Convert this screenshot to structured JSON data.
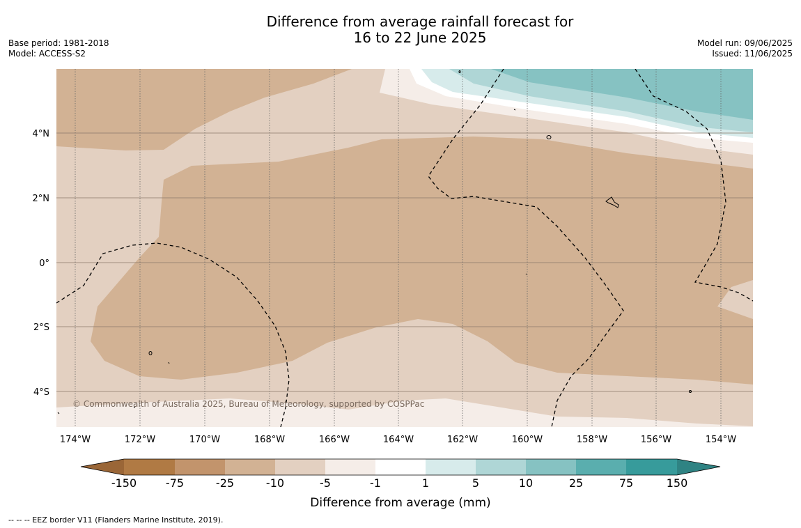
{
  "title": {
    "line1": "Difference from average rainfall forecast for",
    "line2": "16 to 22 June 2025"
  },
  "meta_left": {
    "base_period": "Base period: 1981-2018",
    "model": "Model: ACCESS-S2"
  },
  "meta_right": {
    "model_run": "Model run: 09/06/2025",
    "issued": "Issued: 11/06/2025"
  },
  "map": {
    "x_ticks": [
      "174°W",
      "172°W",
      "170°W",
      "168°W",
      "166°W",
      "164°W",
      "162°W",
      "160°W",
      "158°W",
      "156°W",
      "154°W"
    ],
    "y_ticks": [
      "4°N",
      "2°N",
      "0°",
      "2°S",
      "4°S"
    ],
    "copyright": "© Commonwealth of Australia 2025, Bureau of Meteorology, supported by COSPPac"
  },
  "colorbar": {
    "ticks": [
      "-150",
      "-75",
      "-25",
      "-10",
      "-5",
      "-1",
      "1",
      "5",
      "10",
      "25",
      "75",
      "150"
    ],
    "colors": [
      "#9a6637",
      "#b07a44",
      "#c2946c",
      "#d2b294",
      "#e3d0c1",
      "#f5ede8",
      "#ffffff",
      "#d7ebeb",
      "#afd6d6",
      "#86c2c2",
      "#5aaeae",
      "#379b9b",
      "#2f8383"
    ],
    "label": "Difference from average (mm)"
  },
  "footer": "--  --  -- EEZ border V11 (Flanders Marine Institute, 2019)."
}
